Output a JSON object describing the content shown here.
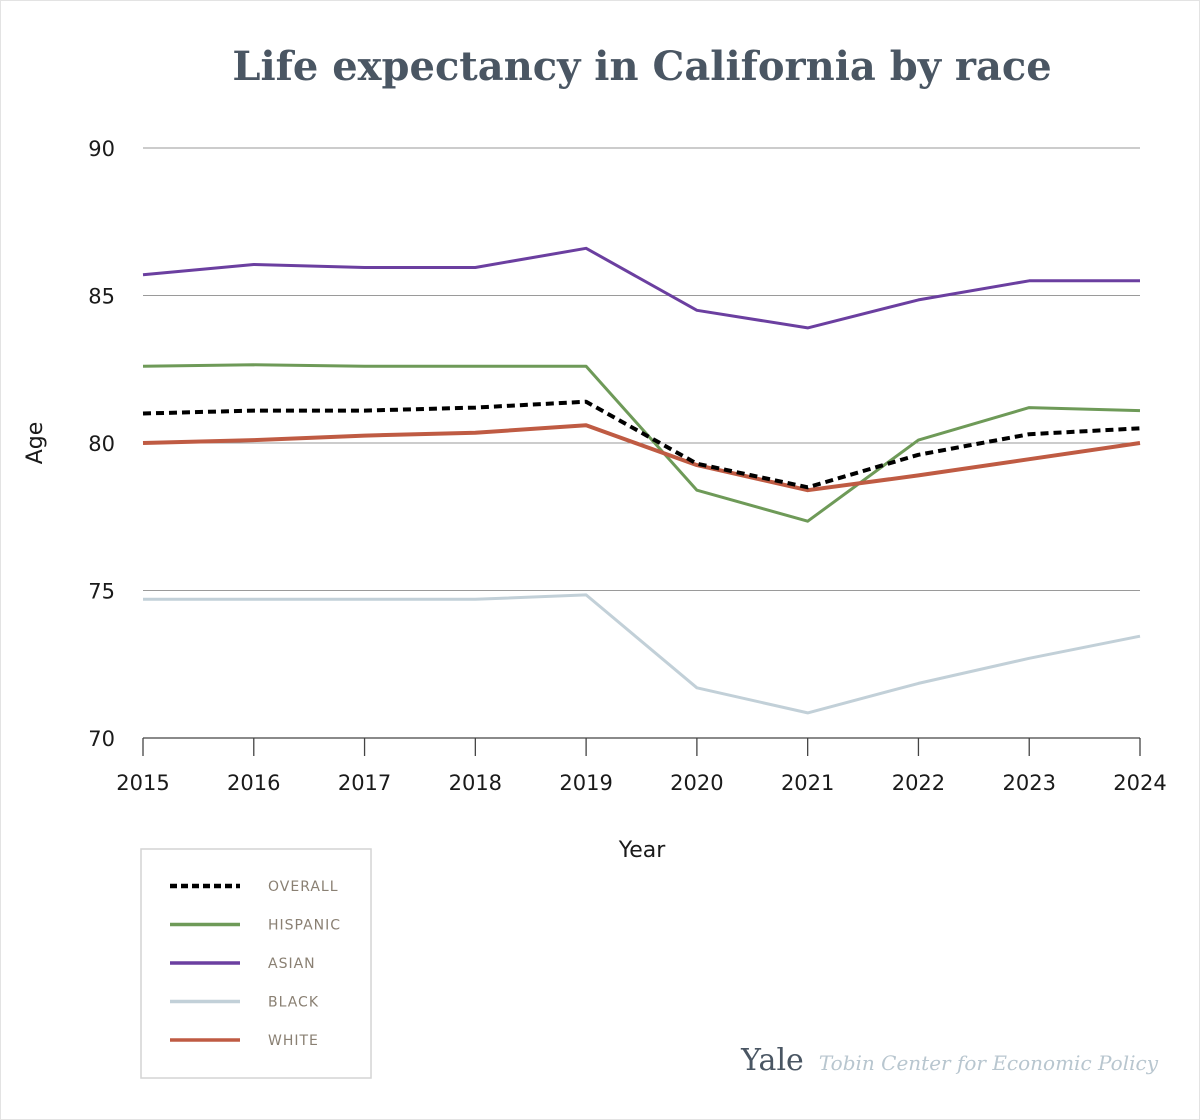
{
  "chart_data": {
    "type": "line",
    "title": "Life expectancy in California by race",
    "xlabel": "Year",
    "ylabel": "Age",
    "ylim": [
      70,
      90
    ],
    "yticks": [
      70,
      75,
      80,
      85,
      90
    ],
    "x": [
      2015,
      2016,
      2017,
      2018,
      2019,
      2020,
      2021,
      2022,
      2023,
      2024
    ],
    "series": [
      {
        "name": "OVERALL",
        "color": "#000000",
        "dash": true,
        "values": [
          81.0,
          81.1,
          81.1,
          81.2,
          81.4,
          79.3,
          78.5,
          79.6,
          80.3,
          80.5
        ]
      },
      {
        "name": "HISPANIC",
        "color": "#6e9a58",
        "dash": false,
        "values": [
          82.6,
          82.65,
          82.6,
          82.6,
          82.6,
          78.4,
          77.35,
          80.1,
          81.2,
          81.1
        ]
      },
      {
        "name": "ASIAN",
        "color": "#6b3fa0",
        "dash": false,
        "values": [
          85.7,
          86.05,
          85.95,
          85.95,
          86.6,
          84.5,
          83.9,
          84.85,
          85.5,
          85.5
        ]
      },
      {
        "name": "BLACK",
        "color": "#c2d0d8",
        "dash": false,
        "values": [
          74.7,
          74.7,
          74.7,
          74.7,
          74.85,
          71.7,
          70.85,
          71.85,
          72.7,
          73.45
        ]
      },
      {
        "name": "WHITE",
        "color": "#bf5b43",
        "dash": false,
        "values": [
          80.0,
          80.1,
          80.25,
          80.35,
          80.6,
          79.25,
          78.4,
          78.9,
          79.45,
          80.0
        ]
      }
    ]
  },
  "branding": {
    "yale": "Yale",
    "center": "Tobin Center for Economic Policy"
  }
}
